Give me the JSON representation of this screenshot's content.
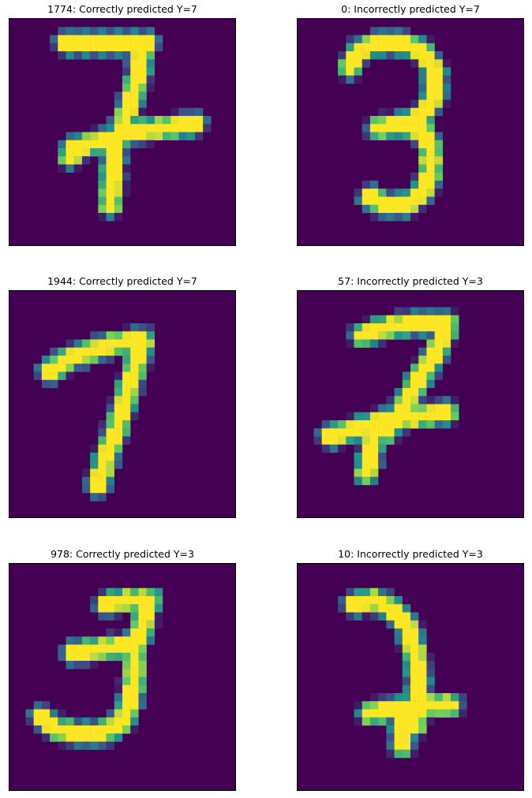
{
  "figure": {
    "colormap": "viridis",
    "background_color": "#440154",
    "panels": [
      {
        "title": "1774: Correctly predicted Y=7",
        "index": 1774,
        "outcome": "Correctly",
        "predicted": 7,
        "digit_strokes": [
          [
            [
              7,
              3
            ],
            [
              10.5,
              3
            ],
            [
              14.5,
              3
            ],
            [
              17,
              3
            ]
          ],
          [
            [
              16.5,
              3.5
            ],
            [
              16,
              7
            ],
            [
              14.5,
              12
            ],
            [
              13,
              16
            ],
            [
              12.5,
              23
            ]
          ],
          [
            [
              8,
              16
            ],
            [
              12,
              15
            ],
            [
              15,
              14
            ],
            [
              19,
              13.5
            ],
            [
              23,
              13
            ]
          ],
          [
            [
              7.5,
              17
            ],
            [
              9.5,
              15.5
            ]
          ]
        ]
      },
      {
        "title": "0: Incorrectly predicted Y=7",
        "index": 0,
        "outcome": "Incorrectly",
        "predicted": 7,
        "digit_strokes": [
          [
            [
              6.5,
              6
            ],
            [
              7.5,
              4
            ],
            [
              10,
              3
            ],
            [
              13,
              3
            ],
            [
              15.5,
              4
            ],
            [
              17,
              6.5
            ],
            [
              17,
              9.5
            ],
            [
              15.5,
              12
            ],
            [
              13,
              13
            ]
          ],
          [
            [
              10,
              13.5
            ],
            [
              13,
              13
            ],
            [
              15.5,
              14
            ],
            [
              16.5,
              16
            ],
            [
              16.5,
              19
            ],
            [
              15.5,
              21.5
            ],
            [
              13.5,
              23
            ],
            [
              10.5,
              23
            ],
            [
              9,
              22
            ]
          ]
        ]
      },
      {
        "title": "1944: Correctly predicted Y=7",
        "index": 1944,
        "outcome": "Correctly",
        "predicted": 7,
        "digit_strokes": [
          [
            [
              5,
              10
            ],
            [
              7,
              8.5
            ],
            [
              10,
              7.5
            ],
            [
              13,
              6.5
            ],
            [
              16.5,
              6
            ]
          ],
          [
            [
              16.5,
              6.5
            ],
            [
              15.5,
              9.5
            ],
            [
              14.5,
              13
            ],
            [
              13.5,
              16.5
            ],
            [
              12,
              20.5
            ],
            [
              11,
              24
            ]
          ]
        ]
      },
      {
        "title": "57: Incorrectly predicted Y=3",
        "index": 57,
        "outcome": "Incorrectly",
        "predicted": 3,
        "digit_strokes": [
          [
            [
              8,
              5.5
            ],
            [
              11,
              4.5
            ],
            [
              14.5,
              4
            ],
            [
              18.5,
              4
            ]
          ],
          [
            [
              18.5,
              4.5
            ],
            [
              17,
              8
            ],
            [
              15,
              11
            ],
            [
              13,
              14.5
            ],
            [
              11,
              17.5
            ]
          ],
          [
            [
              4,
              18
            ],
            [
              7.5,
              17
            ],
            [
              11,
              16
            ],
            [
              15,
              15.5
            ],
            [
              18.5,
              15
            ]
          ],
          [
            [
              9.5,
              17
            ],
            [
              9,
              20.5
            ],
            [
              8.5,
              22.5
            ]
          ]
        ]
      },
      {
        "title": "978: Correctly predicted Y=3",
        "index": 978,
        "outcome": "Correctly",
        "predicted": 3,
        "digit_strokes": [
          [
            [
              12,
              5
            ],
            [
              14.5,
              4.5
            ],
            [
              17.5,
              4.5
            ]
          ],
          [
            [
              17,
              5
            ],
            [
              16.5,
              8
            ],
            [
              15.5,
              10
            ]
          ],
          [
            [
              8,
              11
            ],
            [
              11.5,
              10.5
            ],
            [
              15,
              10
            ]
          ],
          [
            [
              15.5,
              11
            ],
            [
              15.5,
              14
            ],
            [
              15,
              17
            ],
            [
              14,
              19.5
            ],
            [
              11.5,
              21
            ],
            [
              8.5,
              21
            ],
            [
              6,
              20.5
            ],
            [
              4,
              19
            ]
          ]
        ]
      },
      {
        "title": "10: Incorrectly predicted Y=3",
        "index": 10,
        "outcome": "Incorrectly",
        "predicted": 3,
        "digit_strokes": [
          [
            [
              7,
              5
            ],
            [
              9.5,
              4.5
            ],
            [
              11.5,
              5.5
            ],
            [
              13.5,
              7.5
            ],
            [
              14.5,
              10.5
            ],
            [
              15,
              14
            ],
            [
              15,
              17
            ],
            [
              14.5,
              20
            ]
          ],
          [
            [
              9,
              18.5
            ],
            [
              12,
              18
            ],
            [
              15,
              17.5
            ],
            [
              19,
              17.5
            ]
          ],
          [
            [
              13,
              19
            ],
            [
              13,
              22.5
            ]
          ]
        ]
      }
    ]
  }
}
